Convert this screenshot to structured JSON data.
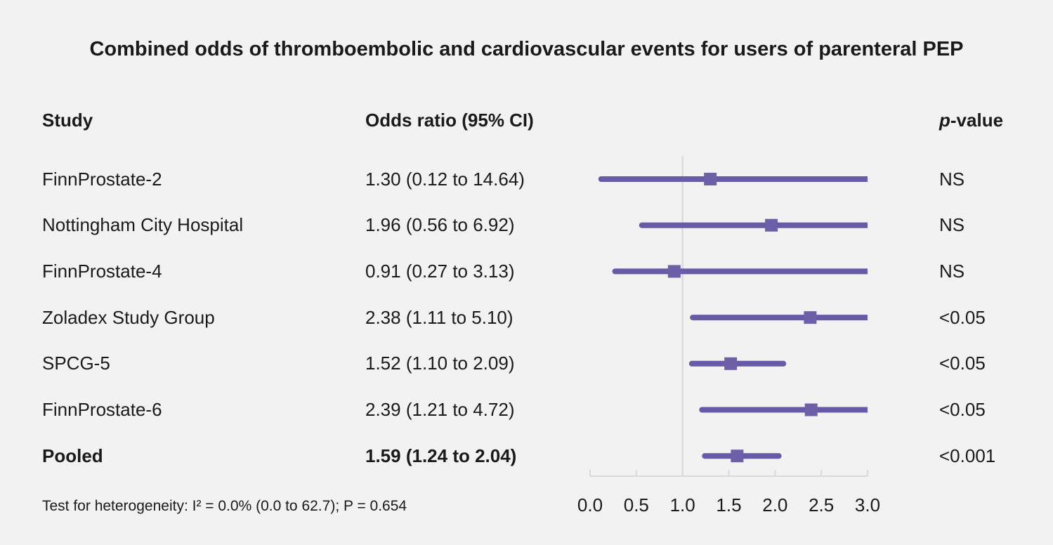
{
  "chart_data": {
    "type": "scatter",
    "subtype": "forest-plot",
    "title": "Combined odds of thromboembolic and cardiovascular events for users of parenteral PEP",
    "column_headers": {
      "study": "Study",
      "odds_ratio": "Odds ratio (95% CI)",
      "p_value_italic": "p",
      "p_value_rest": "-value"
    },
    "rows": [
      {
        "study": "FinnProstate-2",
        "or": 1.3,
        "ci_low": 0.12,
        "ci_high": 14.64,
        "or_ci_label": "1.30 (0.12 to 14.64)",
        "p_value": "NS",
        "emphasis": false
      },
      {
        "study": "Nottingham City Hospital",
        "or": 1.96,
        "ci_low": 0.56,
        "ci_high": 6.92,
        "or_ci_label": "1.96 (0.56 to 6.92)",
        "p_value": "NS",
        "emphasis": false
      },
      {
        "study": "FinnProstate-4",
        "or": 0.91,
        "ci_low": 0.27,
        "ci_high": 3.13,
        "or_ci_label": "0.91 (0.27 to 3.13)",
        "p_value": "NS",
        "emphasis": false
      },
      {
        "study": "Zoladex Study Group",
        "or": 2.38,
        "ci_low": 1.11,
        "ci_high": 5.1,
        "or_ci_label": "2.38 (1.11 to 5.10)",
        "p_value": "<0.05",
        "emphasis": false
      },
      {
        "study": "SPCG-5",
        "or": 1.52,
        "ci_low": 1.1,
        "ci_high": 2.09,
        "or_ci_label": "1.52 (1.10 to 2.09)",
        "p_value": "<0.05",
        "emphasis": false
      },
      {
        "study": "FinnProstate-6",
        "or": 2.39,
        "ci_low": 1.21,
        "ci_high": 4.72,
        "or_ci_label": "2.39 (1.21 to 4.72)",
        "p_value": "<0.05",
        "emphasis": false
      },
      {
        "study": "Pooled",
        "or": 1.59,
        "ci_low": 1.24,
        "ci_high": 2.04,
        "or_ci_label": "1.59 (1.24 to 2.04)",
        "p_value": "<0.001",
        "emphasis": true
      }
    ],
    "x_axis": {
      "min": 0,
      "max": 3,
      "tick_values": [
        0,
        0.5,
        1.0,
        1.5,
        2.0,
        2.5,
        3.0
      ],
      "tick_labels": [
        "0.0",
        "0.5",
        "1.0",
        "1.5",
        "2.0",
        "2.5",
        "3.0"
      ],
      "reference_line_value": 1.0,
      "grid": false
    },
    "footnote": "Test for heterogeneity: I² = 0.0% (0.0 to 62.7); P = 0.654",
    "colors": {
      "ci_line": "#685aa6",
      "marker": "#6e5fa9",
      "axis": "#d7dbe0",
      "reference_line": "#d8dce2",
      "background": "#f2f2f2",
      "text": "#1a1a1a"
    }
  }
}
